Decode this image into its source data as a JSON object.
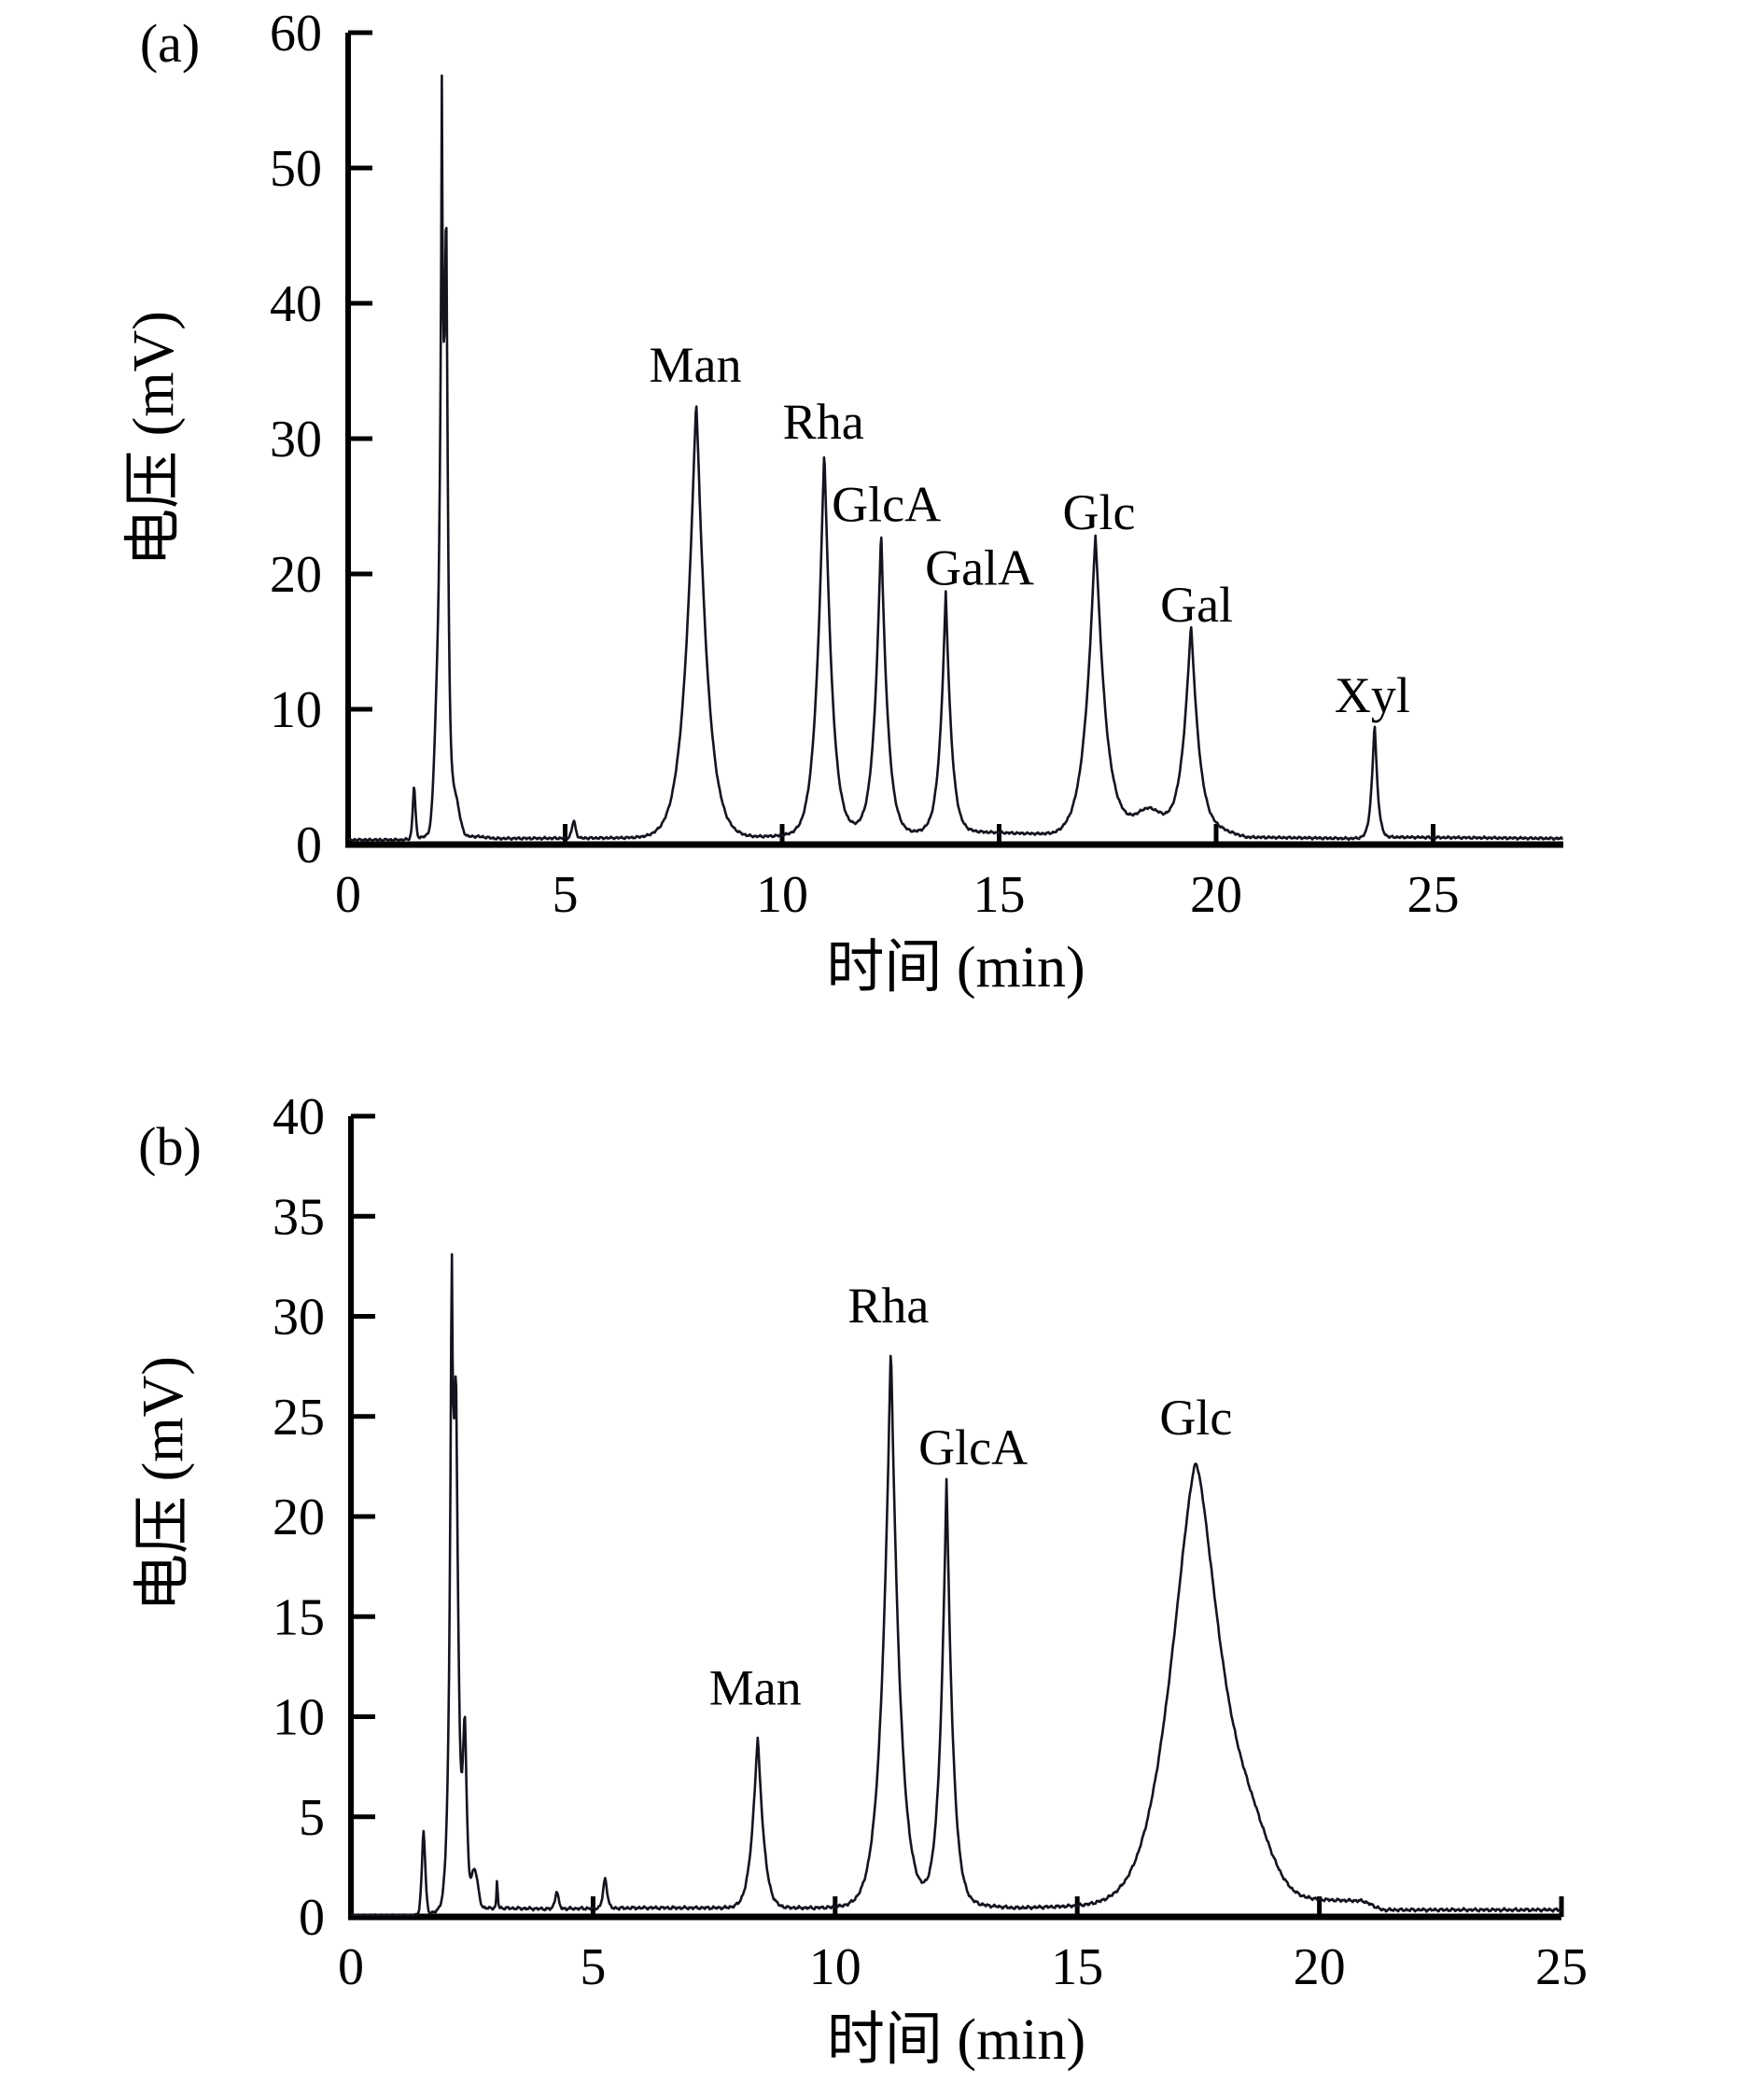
{
  "figure": {
    "description": "Dual-panel HPLC chromatogram of monosaccharide standards and sample",
    "background": "#ffffff",
    "axis_color": "#000000",
    "trace_color": "#14141e"
  },
  "chart_data": [
    {
      "type": "line",
      "panel_tag": "(a)",
      "xlabel": "时间 (min)",
      "ylabel": "电压 (mV)",
      "xlim": [
        0,
        28
      ],
      "ylim": [
        0,
        60
      ],
      "x_ticks": [
        0,
        5,
        10,
        15,
        20,
        25
      ],
      "y_ticks": [
        0,
        10,
        20,
        30,
        40,
        50,
        60
      ],
      "grid": false,
      "labeled_peaks": [
        {
          "name": "Man",
          "retention_min": 8.0,
          "height_mV": 32.2
        },
        {
          "name": "Rha",
          "retention_min": 11.0,
          "height_mV": 28.2
        },
        {
          "name": "GlcA",
          "retention_min": 12.3,
          "height_mV": 22.3
        },
        {
          "name": "GalA",
          "retention_min": 13.8,
          "height_mV": 17.7
        },
        {
          "name": "Glc",
          "retention_min": 17.2,
          "height_mV": 21.5
        },
        {
          "name": "Gal",
          "retention_min": 19.4,
          "height_mV": 14.9
        },
        {
          "name": "Xyl",
          "retention_min": 23.7,
          "height_mV": 8.5
        }
      ],
      "solvent_front": {
        "retention_min": 2.2,
        "height_mV": 54
      },
      "render": {
        "noise": {
          "amp": 0.1,
          "quiet_until": 0,
          "quiet_factor": 1
        },
        "baseline": [
          [
            0,
            0.35
          ],
          [
            1.25,
            0.35
          ],
          [
            1.8,
            0.55
          ],
          [
            3.0,
            0.6
          ],
          [
            3.4,
            0.45
          ],
          [
            6.8,
            0.5
          ],
          [
            9.3,
            0.55
          ],
          [
            10.3,
            0.7
          ],
          [
            11.7,
            1.0
          ],
          [
            12.9,
            0.85
          ],
          [
            13.4,
            0.95
          ],
          [
            14.4,
            0.95
          ],
          [
            16.3,
            0.75
          ],
          [
            17.7,
            1.6
          ],
          [
            19.0,
            1.5
          ],
          [
            20.1,
            1.1
          ],
          [
            20.7,
            0.55
          ],
          [
            23.1,
            0.45
          ],
          [
            24.1,
            0.55
          ],
          [
            28,
            0.45
          ]
        ],
        "peaks": [
          {
            "c": 1.52,
            "h": 3.9,
            "w": 0.045,
            "p": 1.6
          },
          {
            "c": 2.05,
            "h": 6,
            "w": 0.1,
            "p": 2
          },
          {
            "c": 2.16,
            "h": 50,
            "w": 0.055,
            "p": 0.95
          },
          {
            "c": 2.26,
            "h": 38,
            "w": 0.055,
            "p": 1.3
          },
          {
            "c": 2.45,
            "h": 3,
            "w": 0.15,
            "p": 2
          },
          {
            "c": 5.2,
            "h": 1.3,
            "w": 0.06,
            "p": 1.6
          },
          {
            "c": 8.02,
            "h": 32.2,
            "w": 0.27,
            "p": 1.15
          },
          {
            "c": 10.97,
            "h": 28.2,
            "w": 0.19,
            "p": 1.15
          },
          {
            "c": 12.28,
            "h": 22.3,
            "w": 0.16,
            "p": 1.1
          },
          {
            "c": 13.77,
            "h": 17.7,
            "w": 0.14,
            "p": 1.1
          },
          {
            "c": 17.22,
            "h": 21.5,
            "w": 0.24,
            "p": 1.15
          },
          {
            "c": 18.45,
            "h": 1.1,
            "w": 0.35,
            "p": 2
          },
          {
            "c": 19.42,
            "h": 14.9,
            "w": 0.2,
            "p": 1.15
          },
          {
            "c": 23.65,
            "h": 8.5,
            "w": 0.085,
            "p": 1.2
          }
        ],
        "peak_labels": [
          {
            "text": "Man",
            "t": 8.0,
            "mv": 34.2
          },
          {
            "text": "Rha",
            "t": 10.95,
            "mv": 30.0
          },
          {
            "text": "GlcA",
            "t": 12.4,
            "mv": 23.9
          },
          {
            "text": "GalA",
            "t": 14.55,
            "mv": 19.2
          },
          {
            "text": "Glc",
            "t": 17.3,
            "mv": 23.3
          },
          {
            "text": "Gal",
            "t": 19.55,
            "mv": 16.5
          },
          {
            "text": "Xyl",
            "t": 23.6,
            "mv": 9.8
          }
        ]
      }
    },
    {
      "type": "line",
      "panel_tag": "(b)",
      "xlabel": "时间 (min)",
      "ylabel": "电压 (mV)",
      "xlim": [
        0,
        25
      ],
      "ylim": [
        0,
        40
      ],
      "x_ticks": [
        0,
        5,
        10,
        15,
        20,
        25
      ],
      "y_ticks": [
        0,
        5,
        10,
        15,
        20,
        25,
        30,
        35,
        40
      ],
      "grid": false,
      "labeled_peaks": [
        {
          "name": "Man",
          "retention_min": 8.4,
          "height_mV": 8.5
        },
        {
          "name": "Rha",
          "retention_min": 11.2,
          "height_mV": 27.9
        },
        {
          "name": "GlcA",
          "retention_min": 12.3,
          "height_mV": 21.2
        },
        {
          "name": "Glc",
          "retention_min": 17.5,
          "height_mV": 21.9
        }
      ],
      "solvent_front": {
        "retention_min": 2.1,
        "height_mV": 34.5
      },
      "render": {
        "noise": {
          "amp": 0.09,
          "quiet_until": 1.35,
          "quiet_factor": 0.25
        },
        "baseline": [
          [
            0,
            0.1
          ],
          [
            1.3,
            0.1
          ],
          [
            2.9,
            0.45
          ],
          [
            4.0,
            0.4
          ],
          [
            6.0,
            0.45
          ],
          [
            9.6,
            0.45
          ],
          [
            10.5,
            0.5
          ],
          [
            11.8,
            0.65
          ],
          [
            12.9,
            0.6
          ],
          [
            13.7,
            0.45
          ],
          [
            15.3,
            0.55
          ],
          [
            19.9,
            0.85
          ],
          [
            20.9,
            0.8
          ],
          [
            21.3,
            0.35
          ],
          [
            25,
            0.35
          ]
        ],
        "peaks": [
          {
            "c": 1.5,
            "h": 4.2,
            "w": 0.05,
            "p": 1.6
          },
          {
            "c": 2.08,
            "h": 30,
            "w": 0.05,
            "p": 0.95
          },
          {
            "c": 2.17,
            "h": 22,
            "w": 0.07,
            "p": 1.3
          },
          {
            "c": 2.35,
            "h": 9,
            "w": 0.06,
            "p": 1.5
          },
          {
            "c": 2.55,
            "h": 2,
            "w": 0.1,
            "p": 2
          },
          {
            "c": 3.02,
            "h": 2.0,
            "w": 0.012,
            "p": 1.0
          },
          {
            "c": 4.25,
            "h": 0.9,
            "w": 0.05,
            "p": 1.6
          },
          {
            "c": 5.25,
            "h": 1.5,
            "w": 0.06,
            "p": 1.6
          },
          {
            "c": 8.4,
            "h": 8.5,
            "w": 0.14,
            "p": 1.2
          },
          {
            "c": 11.15,
            "h": 27.9,
            "w": 0.2,
            "p": 1.1
          },
          {
            "c": 12.3,
            "h": 21.2,
            "w": 0.14,
            "p": 1.1
          },
          {
            "c": 17.45,
            "h": 21.9,
            "w": 0.72,
            "p": 1.5
          },
          {
            "c": 18.6,
            "h": 2.5,
            "w": 0.6,
            "p": 2
          }
        ],
        "peak_labels": [
          {
            "text": "Man",
            "t": 8.35,
            "mv": 10.6
          },
          {
            "text": "Rha",
            "t": 11.1,
            "mv": 29.7
          },
          {
            "text": "GlcA",
            "t": 12.85,
            "mv": 22.6
          },
          {
            "text": "Glc",
            "t": 17.45,
            "mv": 24.1
          }
        ]
      }
    }
  ]
}
